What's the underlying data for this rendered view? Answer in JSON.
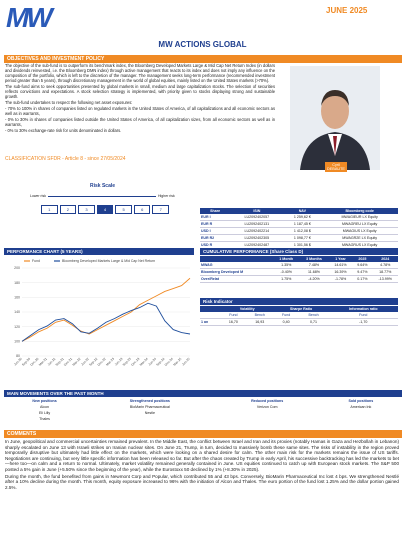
{
  "header": {
    "logo": "MW",
    "month": "JUNE 2025",
    "title": "MW ACTIONS GLOBAL"
  },
  "objectives": {
    "heading": "OBJECTIVES AND INVESTMENT POLICY",
    "paragraphs": [
      "The objective of the sub-fund is to outperform its benchmark index, the Bloomberg Developed Markets Large & Mid Cap Net Return Index (in dollars and dividends reinvested, i.e. the Bloomberg DMN index) through active management that reacts to its index and does not imply any influence on the composition of the portfolio, which is left to the discretion of the manager. The management seeks long-term performance (recommended investment period greater than 5 years), through discretionary management in the world of global equities, mainly listed on the United States markets (>70%).",
      "The sub-fund aims to seek opportunities presented by global markets in small, medium and large capitalization stocks. The selection of securities reflects convictions and expectations. A stock selection strategy is implemented, with priority given to stocks displaying strong and sustainable growth.",
      "The sub-fund undertakes to respect the following net asset exposures:",
      "- 70% to 100% in shares of companies listed on regulated markets in the United States of America, of all capitalizations and all economic sectors as well as in warrants,",
      "- 0% to 30% in shares of companies listed outside the United States of America, of all capitalization sizes, from all economic sectors as well as in warrants,",
      "- 0% to 30% exchange-rate risk for units denominated in dollars."
    ],
    "classification": "CLASSIFICATION SFDR - Article 8 - since 27/05/2024"
  },
  "manager": {
    "first_name": "Cyril",
    "last_name": "DEBAUTE"
  },
  "risk_scale": {
    "title": "Risk Scale",
    "lower": "Lower risk",
    "higher": "Higher risk",
    "levels": [
      1,
      2,
      3,
      4,
      5,
      6,
      7
    ],
    "selected": 4
  },
  "share_classes": {
    "columns": [
      "Share",
      "ISIN",
      "NAV",
      "Bloomberg code"
    ],
    "rows": [
      [
        "EUR I",
        "LU2092402057",
        "1 259,62 €",
        "MWAGIEUR LX Equity"
      ],
      [
        "EUR R",
        "LU2092402131",
        "1 187,45 €",
        "MWAGREU LX Equity"
      ],
      [
        "USD I",
        "LU2092402214",
        "1 412,08 $",
        "MWAGIUS LX Equity"
      ],
      [
        "EUR R2",
        "LU2092402305",
        "1 098,77 €",
        "MWAGR2E LX Equity"
      ],
      [
        "USD R",
        "LU2092402487",
        "1 301,56 $",
        "MWAGRUS LX Equity"
      ]
    ]
  },
  "chart_data": {
    "type": "line",
    "title": "PERFORMANCE CHART (5 YEARS)",
    "x": [
      "Jun-20",
      "Sep-20",
      "Dec-20",
      "Mar-21",
      "Jun-21",
      "Sep-21",
      "Dec-21",
      "Mar-22",
      "Jun-22",
      "Sep-22",
      "Dec-22",
      "Mar-23",
      "Jun-23",
      "Sep-23",
      "Dec-23",
      "Mar-24",
      "Jun-24",
      "Sep-24",
      "Dec-24",
      "Mar-25",
      "Jun-25"
    ],
    "series": [
      {
        "name": "Fund",
        "color": "#f08a24",
        "values": [
          100,
          106,
          113,
          118,
          126,
          129,
          122,
          114,
          110,
          116,
          122,
          128,
          134,
          140,
          150,
          156,
          162,
          168,
          172,
          176,
          186
        ]
      },
      {
        "name": "Bloomberg Developed Markets Large & Mid Cap Net Return",
        "color": "#1f4e9c",
        "values": [
          100,
          108,
          116,
          121,
          129,
          131,
          124,
          113,
          111,
          118,
          126,
          131,
          137,
          142,
          146,
          152,
          148,
          128,
          116,
          112,
          110
        ]
      }
    ],
    "ylim": [
      80,
      200
    ],
    "yticks": [
      80,
      100,
      120,
      140,
      160,
      180,
      200
    ]
  },
  "cumulative": {
    "heading": "CUMULATIVE PERFORMANCE (Share Class D)",
    "columns": [
      "1 Month",
      "3 Months",
      "1 Year",
      "2025",
      "2024"
    ],
    "rows": [
      [
        "MWAG",
        "1.35%",
        "7.48%",
        "14.61%",
        "9.64%",
        "4.78%"
      ],
      [
        "Bloomberg Developed M",
        "-0.40%",
        "11.68%",
        "16.39%",
        "9.47%",
        "18.77%"
      ],
      [
        "Over/Relat",
        "1.75%",
        "-4.20%",
        "-1.78%",
        "0.17%",
        "-13.99%"
      ]
    ]
  },
  "risk_indicator": {
    "heading": "Risk Indicator",
    "groups": [
      "Volatility",
      "Sharpe Ratio",
      "Information ratio"
    ],
    "subheads": [
      "Fund",
      "Bench",
      "Fund",
      "Bench",
      "Fund"
    ],
    "row": [
      "1 an",
      "16,70",
      "16,93",
      "0,40",
      "0,71",
      "-1,70"
    ]
  },
  "movements": {
    "heading": "MAIN MOVEMENTS OVER THE PAST MONTH",
    "columns": [
      {
        "title": "New positions",
        "items": [
          "Alcon",
          "Eli Lilly",
          "Thales"
        ]
      },
      {
        "title": "Strengthened positions",
        "items": [
          "BioMarin Pharmaceutical",
          "Nestle"
        ]
      },
      {
        "title": "Reduced positions",
        "items": [
          "Verizon Com"
        ]
      },
      {
        "title": "Sold positions",
        "items": [
          "American Ink"
        ]
      }
    ]
  },
  "comments": {
    "heading": "COMMENTS",
    "paragraphs": [
      "In June, geopolitical and commercial uncertainties remained prevalent. In the Middle East, the conflict between Israel and Iran and its proxies (notably Hamas in Gaza and Hezbollah in Lebanon) sharply escalated on June 13 with Israeli strikes on Iranian nuclear sites. On June 21, Trump, in turn, decided to massively bomb these same sites. The risks of instability in the region proved temporarily disruptive but ultimately had little effect on the markets, which were looking on a shared desire for calm. The other main risk for the markets remains the issue of US tariffs. Negotiations are continuing, but very little specific information has been released so far. But after the chaos created by Trump in early April, his successive backtracking has led the markets to bet—here too—on calm and a return to normal. Ultimately, market volatility remained generally contained in June. US equities continued to catch up with European stock markets. The S&P 500 posted a 5% gain in June (+5.50% since the beginning of the year), while the Eurostoxx 50 declined by 1% (+8.30% in 2025).",
      "During the month, the fund benefited from gains in Newmont Corp and Popular, which contributed 55 and 43 bps. Conversely, BioMarin Pharmaceutical Inc lost 4 bps. We strengthened Nestlé after a 10% decline during the month. This month, equity exposure increased to 96% with the initiation of Alcon and Thales. The euro portion of the fund lost 1.25% and the dollar portion gained 2.5%."
    ]
  }
}
